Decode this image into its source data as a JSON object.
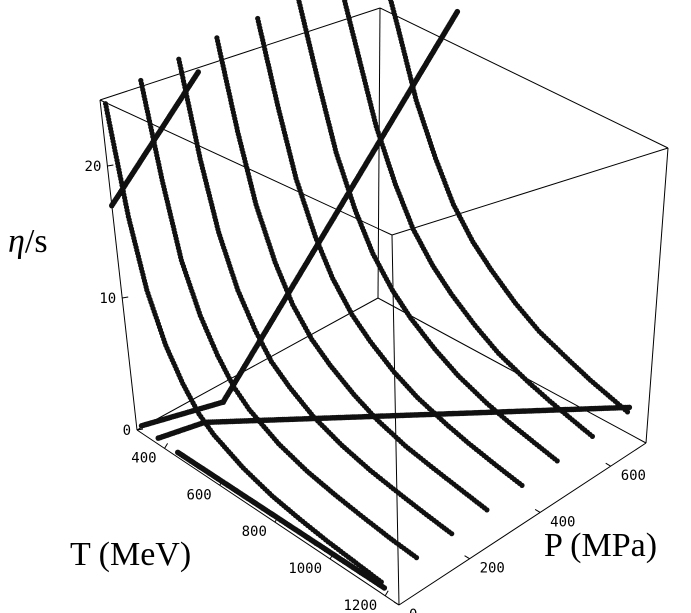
{
  "chart_data": {
    "type": "scatter",
    "title": "",
    "xlabel": "T (MeV)",
    "ylabel": "P (MPa)",
    "zlabel_prefix": "η",
    "zlabel_suffix": "/s",
    "x_ticks": [
      "400",
      "600",
      "800",
      "1000",
      "1200"
    ],
    "y_ticks": [
      "0",
      "200",
      "400",
      "600"
    ],
    "z_ticks": [
      "0",
      "10",
      "20"
    ],
    "xlim": [
      300,
      1250
    ],
    "ylim": [
      0,
      700
    ],
    "zlim": [
      0,
      25
    ],
    "grid": false,
    "point_color": "#111111",
    "series": [
      {
        "pressure": 0,
        "values": [
          [
            320,
            25
          ],
          [
            360,
            17
          ],
          [
            400,
            12
          ],
          [
            450,
            8.5
          ],
          [
            500,
            6.3
          ],
          [
            550,
            4.7
          ],
          [
            600,
            3.8
          ],
          [
            700,
            2.7
          ],
          [
            800,
            2.0
          ],
          [
            900,
            1.6
          ],
          [
            1000,
            1.3
          ],
          [
            1100,
            1.1
          ],
          [
            1200,
            0.9
          ]
        ]
      },
      {
        "pressure": 100,
        "values": [
          [
            320,
            25
          ],
          [
            360,
            18
          ],
          [
            400,
            12.5
          ],
          [
            450,
            9
          ],
          [
            500,
            6.7
          ],
          [
            550,
            5
          ],
          [
            600,
            4
          ],
          [
            700,
            2.8
          ],
          [
            800,
            2.1
          ],
          [
            900,
            1.7
          ],
          [
            1000,
            1.4
          ],
          [
            1100,
            1.15
          ],
          [
            1200,
            1.0
          ]
        ]
      },
      {
        "pressure": 200,
        "values": [
          [
            330,
            25
          ],
          [
            370,
            18
          ],
          [
            410,
            13
          ],
          [
            460,
            9.3
          ],
          [
            510,
            7
          ],
          [
            560,
            5.3
          ],
          [
            620,
            4.2
          ],
          [
            700,
            3.1
          ],
          [
            800,
            2.3
          ],
          [
            900,
            1.8
          ],
          [
            1000,
            1.5
          ],
          [
            1100,
            1.25
          ],
          [
            1200,
            1.05
          ]
        ]
      },
      {
        "pressure": 300,
        "values": [
          [
            340,
            25
          ],
          [
            380,
            18.5
          ],
          [
            420,
            13.5
          ],
          [
            470,
            9.8
          ],
          [
            520,
            7.3
          ],
          [
            580,
            5.5
          ],
          [
            640,
            4.4
          ],
          [
            720,
            3.3
          ],
          [
            800,
            2.5
          ],
          [
            900,
            1.9
          ],
          [
            1000,
            1.6
          ],
          [
            1100,
            1.35
          ],
          [
            1200,
            1.1
          ]
        ]
      },
      {
        "pressure": 400,
        "values": [
          [
            360,
            25
          ],
          [
            400,
            19
          ],
          [
            440,
            14
          ],
          [
            490,
            10.3
          ],
          [
            540,
            7.8
          ],
          [
            600,
            5.9
          ],
          [
            660,
            4.7
          ],
          [
            740,
            3.5
          ],
          [
            820,
            2.7
          ],
          [
            920,
            2.1
          ],
          [
            1000,
            1.75
          ],
          [
            1100,
            1.45
          ],
          [
            1200,
            1.2
          ]
        ]
      },
      {
        "pressure": 500,
        "values": [
          [
            380,
            25
          ],
          [
            420,
            19.5
          ],
          [
            460,
            14.5
          ],
          [
            510,
            10.8
          ],
          [
            560,
            8.2
          ],
          [
            620,
            6.3
          ],
          [
            680,
            5
          ],
          [
            760,
            3.8
          ],
          [
            840,
            2.9
          ],
          [
            940,
            2.2
          ],
          [
            1020,
            1.85
          ],
          [
            1100,
            1.6
          ],
          [
            1200,
            1.3
          ]
        ]
      },
      {
        "pressure": 600,
        "values": [
          [
            400,
            25
          ],
          [
            440,
            20
          ],
          [
            480,
            15
          ],
          [
            530,
            11.3
          ],
          [
            580,
            8.6
          ],
          [
            640,
            6.7
          ],
          [
            700,
            5.4
          ],
          [
            780,
            4.1
          ],
          [
            860,
            3.1
          ],
          [
            960,
            2.4
          ],
          [
            1040,
            2.0
          ],
          [
            1120,
            1.7
          ],
          [
            1200,
            1.4
          ]
        ]
      },
      {
        "pressure": 700,
        "values": [
          [
            420,
            25
          ],
          [
            460,
            20.5
          ],
          [
            500,
            15.5
          ],
          [
            550,
            11.8
          ],
          [
            600,
            9
          ],
          [
            660,
            7
          ],
          [
            720,
            5.7
          ],
          [
            800,
            4.3
          ],
          [
            880,
            3.3
          ],
          [
            980,
            2.6
          ],
          [
            1060,
            2.1
          ],
          [
            1130,
            1.8
          ],
          [
            1200,
            1.5
          ]
        ]
      }
    ],
    "minimum_lines": [
      {
        "points": [
          [
            320,
            0.6,
            0
          ],
          [
            650,
            7,
            0
          ],
          [
            700,
            25,
            700
          ]
        ]
      },
      {
        "points": [
          [
            380,
            0.5,
            0
          ],
          [
            420,
            0.5,
            100
          ],
          [
            1200,
            2.0,
            700
          ]
        ]
      },
      {
        "points": [
          [
            450,
            0.4,
            0
          ],
          [
            1200,
            0.6,
            0
          ]
        ]
      },
      {
        "points": [
          [
            300,
            17,
            0
          ],
          [
            400,
            25,
            200
          ]
        ]
      }
    ]
  }
}
